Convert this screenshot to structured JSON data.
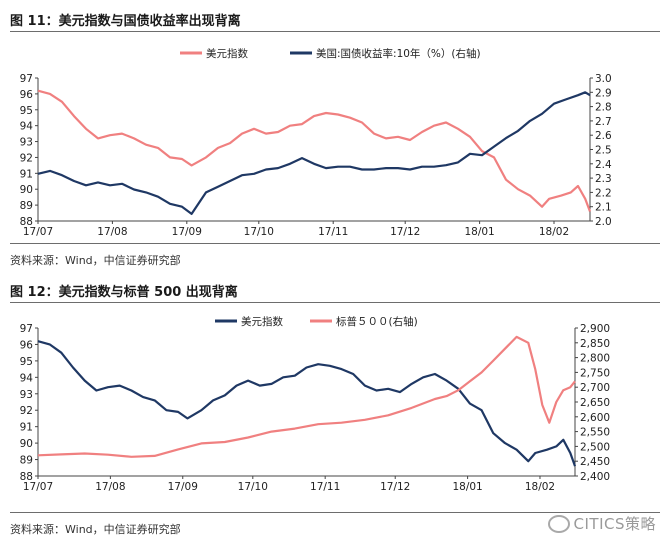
{
  "figures": [
    {
      "title": "图 11：美元指数与国债收益率出现背离",
      "source": "资料来源：Wind，中信证券研究部"
    },
    {
      "title": "图 12：美元指数与标普 500 出现背离",
      "source": "资料来源：Wind，中信证券研究部"
    }
  ],
  "watermark": {
    "text": "CITICS策略",
    "icon": "wechat-icon"
  },
  "colors": {
    "navy": "#1f3864",
    "salmon": "#f08080"
  },
  "chart_data": [
    {
      "type": "line",
      "x_tick_labels": [
        "17/07",
        "17/08",
        "17/09",
        "17/10",
        "17/11",
        "17/12",
        "18/01",
        "18/02"
      ],
      "x_range": [
        0,
        230
      ],
      "x_tick_positions": [
        0,
        31,
        62,
        92,
        123,
        153,
        184,
        215
      ],
      "y_left": {
        "ticks": [
          88,
          89,
          90,
          91,
          92,
          93,
          94,
          95,
          96,
          97
        ],
        "range": [
          88,
          97
        ]
      },
      "y_right": {
        "ticks": [
          "2.0",
          "2.1",
          "2.2",
          "2.3",
          "2.4",
          "2.5",
          "2.6",
          "2.7",
          "2.8",
          "2.9",
          "3.0"
        ],
        "range": [
          2.0,
          3.0
        ]
      },
      "series": [
        {
          "name": "美元指数",
          "axis": "left",
          "color": "#f08080",
          "points": [
            [
              0,
              96.2
            ],
            [
              5,
              96.0
            ],
            [
              10,
              95.5
            ],
            [
              15,
              94.6
            ],
            [
              20,
              93.8
            ],
            [
              25,
              93.2
            ],
            [
              30,
              93.4
            ],
            [
              35,
              93.5
            ],
            [
              40,
              93.2
            ],
            [
              45,
              92.8
            ],
            [
              50,
              92.6
            ],
            [
              55,
              92.0
            ],
            [
              60,
              91.9
            ],
            [
              64,
              91.5
            ],
            [
              70,
              92.0
            ],
            [
              75,
              92.6
            ],
            [
              80,
              92.9
            ],
            [
              85,
              93.5
            ],
            [
              90,
              93.8
            ],
            [
              95,
              93.5
            ],
            [
              100,
              93.6
            ],
            [
              105,
              94.0
            ],
            [
              110,
              94.1
            ],
            [
              115,
              94.6
            ],
            [
              120,
              94.8
            ],
            [
              125,
              94.7
            ],
            [
              130,
              94.5
            ],
            [
              135,
              94.2
            ],
            [
              140,
              93.5
            ],
            [
              145,
              93.2
            ],
            [
              150,
              93.3
            ],
            [
              155,
              93.1
            ],
            [
              160,
              93.6
            ],
            [
              165,
              94.0
            ],
            [
              170,
              94.2
            ],
            [
              175,
              93.8
            ],
            [
              180,
              93.3
            ],
            [
              185,
              92.4
            ],
            [
              190,
              92.0
            ],
            [
              195,
              90.6
            ],
            [
              200,
              90.0
            ],
            [
              205,
              89.6
            ],
            [
              210,
              88.9
            ],
            [
              213,
              89.4
            ],
            [
              218,
              89.6
            ],
            [
              222,
              89.8
            ],
            [
              225,
              90.2
            ],
            [
              228,
              89.4
            ],
            [
              230,
              88.6
            ]
          ]
        },
        {
          "name": "美国:国债收益率:10年（%）(右轴)",
          "axis": "right",
          "color": "#1f3864",
          "points": [
            [
              0,
              2.33
            ],
            [
              5,
              2.35
            ],
            [
              10,
              2.32
            ],
            [
              15,
              2.28
            ],
            [
              20,
              2.25
            ],
            [
              25,
              2.27
            ],
            [
              30,
              2.25
            ],
            [
              35,
              2.26
            ],
            [
              40,
              2.22
            ],
            [
              45,
              2.2
            ],
            [
              50,
              2.17
            ],
            [
              55,
              2.12
            ],
            [
              60,
              2.1
            ],
            [
              64,
              2.05
            ],
            [
              70,
              2.2
            ],
            [
              75,
              2.24
            ],
            [
              80,
              2.28
            ],
            [
              85,
              2.32
            ],
            [
              90,
              2.33
            ],
            [
              95,
              2.36
            ],
            [
              100,
              2.37
            ],
            [
              105,
              2.4
            ],
            [
              110,
              2.44
            ],
            [
              115,
              2.4
            ],
            [
              120,
              2.37
            ],
            [
              125,
              2.38
            ],
            [
              130,
              2.38
            ],
            [
              135,
              2.36
            ],
            [
              140,
              2.36
            ],
            [
              145,
              2.37
            ],
            [
              150,
              2.37
            ],
            [
              155,
              2.36
            ],
            [
              160,
              2.38
            ],
            [
              165,
              2.38
            ],
            [
              170,
              2.39
            ],
            [
              175,
              2.41
            ],
            [
              180,
              2.47
            ],
            [
              185,
              2.46
            ],
            [
              190,
              2.52
            ],
            [
              195,
              2.58
            ],
            [
              200,
              2.63
            ],
            [
              205,
              2.7
            ],
            [
              210,
              2.75
            ],
            [
              215,
              2.82
            ],
            [
              220,
              2.85
            ],
            [
              225,
              2.88
            ],
            [
              228,
              2.9
            ],
            [
              230,
              2.88
            ]
          ]
        }
      ]
    },
    {
      "type": "line",
      "x_tick_labels": [
        "17/07",
        "17/08",
        "17/09",
        "17/10",
        "17/11",
        "17/12",
        "18/01",
        "18/02"
      ],
      "x_range": [
        0,
        230
      ],
      "x_tick_positions": [
        0,
        31,
        62,
        92,
        123,
        153,
        184,
        215
      ],
      "y_left": {
        "ticks": [
          88,
          89,
          90,
          91,
          92,
          93,
          94,
          95,
          96,
          97
        ],
        "range": [
          88,
          97
        ]
      },
      "y_right": {
        "ticks": [
          "2,400",
          "2,450",
          "2,500",
          "2,550",
          "2,600",
          "2,650",
          "2,700",
          "2,750",
          "2,800",
          "2,850",
          "2,900"
        ],
        "range": [
          2400,
          2900
        ]
      },
      "series": [
        {
          "name": "美元指数",
          "axis": "left",
          "color": "#1f3864",
          "points": [
            [
              0,
              96.2
            ],
            [
              5,
              96.0
            ],
            [
              10,
              95.5
            ],
            [
              15,
              94.6
            ],
            [
              20,
              93.8
            ],
            [
              25,
              93.2
            ],
            [
              30,
              93.4
            ],
            [
              35,
              93.5
            ],
            [
              40,
              93.2
            ],
            [
              45,
              92.8
            ],
            [
              50,
              92.6
            ],
            [
              55,
              92.0
            ],
            [
              60,
              91.9
            ],
            [
              64,
              91.5
            ],
            [
              70,
              92.0
            ],
            [
              75,
              92.6
            ],
            [
              80,
              92.9
            ],
            [
              85,
              93.5
            ],
            [
              90,
              93.8
            ],
            [
              95,
              93.5
            ],
            [
              100,
              93.6
            ],
            [
              105,
              94.0
            ],
            [
              110,
              94.1
            ],
            [
              115,
              94.6
            ],
            [
              120,
              94.8
            ],
            [
              125,
              94.7
            ],
            [
              130,
              94.5
            ],
            [
              135,
              94.2
            ],
            [
              140,
              93.5
            ],
            [
              145,
              93.2
            ],
            [
              150,
              93.3
            ],
            [
              155,
              93.1
            ],
            [
              160,
              93.6
            ],
            [
              165,
              94.0
            ],
            [
              170,
              94.2
            ],
            [
              175,
              93.8
            ],
            [
              180,
              93.3
            ],
            [
              185,
              92.4
            ],
            [
              190,
              92.0
            ],
            [
              195,
              90.6
            ],
            [
              200,
              90.0
            ],
            [
              205,
              89.6
            ],
            [
              210,
              88.9
            ],
            [
              213,
              89.4
            ],
            [
              218,
              89.6
            ],
            [
              222,
              89.8
            ],
            [
              225,
              90.2
            ],
            [
              228,
              89.4
            ],
            [
              230,
              88.6
            ]
          ]
        },
        {
          "name": "标普５００(右轴)",
          "axis": "right",
          "color": "#f08080",
          "points": [
            [
              0,
              2470
            ],
            [
              10,
              2473
            ],
            [
              20,
              2476
            ],
            [
              30,
              2472
            ],
            [
              40,
              2465
            ],
            [
              50,
              2468
            ],
            [
              60,
              2490
            ],
            [
              70,
              2510
            ],
            [
              80,
              2515
            ],
            [
              90,
              2530
            ],
            [
              100,
              2550
            ],
            [
              110,
              2560
            ],
            [
              120,
              2575
            ],
            [
              130,
              2580
            ],
            [
              140,
              2590
            ],
            [
              150,
              2605
            ],
            [
              160,
              2630
            ],
            [
              170,
              2660
            ],
            [
              175,
              2670
            ],
            [
              180,
              2690
            ],
            [
              185,
              2720
            ],
            [
              190,
              2750
            ],
            [
              195,
              2790
            ],
            [
              200,
              2830
            ],
            [
              205,
              2870
            ],
            [
              210,
              2850
            ],
            [
              213,
              2760
            ],
            [
              216,
              2640
            ],
            [
              219,
              2580
            ],
            [
              222,
              2650
            ],
            [
              225,
              2690
            ],
            [
              228,
              2700
            ],
            [
              230,
              2720
            ]
          ]
        }
      ]
    }
  ]
}
